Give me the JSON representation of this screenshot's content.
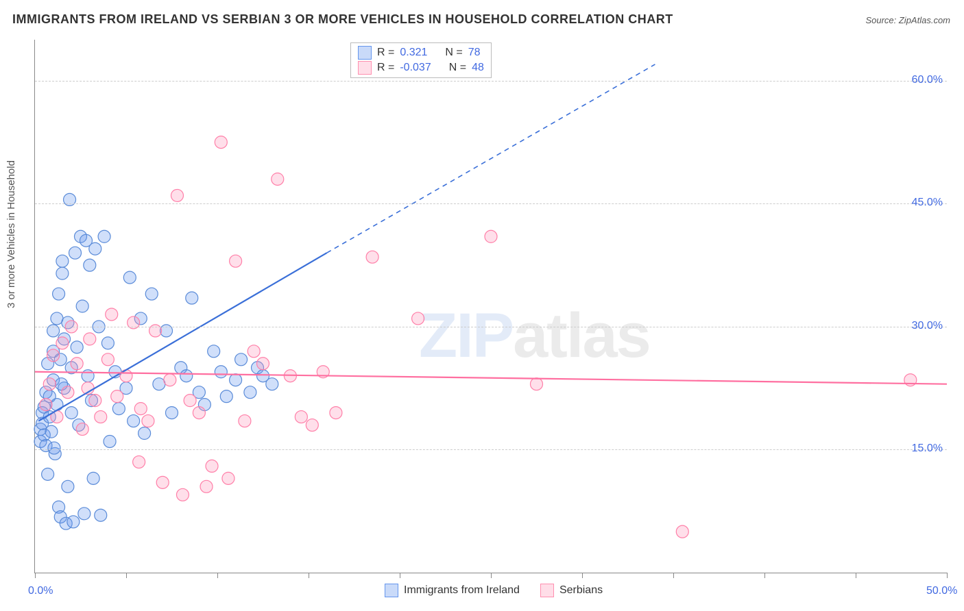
{
  "title": "IMMIGRANTS FROM IRELAND VS SERBIAN 3 OR MORE VEHICLES IN HOUSEHOLD CORRELATION CHART",
  "source": "Source: ZipAtlas.com",
  "ylabel": "3 or more Vehicles in Household",
  "watermark_a": "ZIP",
  "watermark_b": "atlas",
  "chart": {
    "type": "scatter",
    "xlim": [
      0,
      50
    ],
    "ylim": [
      0,
      65
    ],
    "xticks": [
      0,
      5,
      10,
      15,
      20,
      25,
      30,
      35,
      40,
      45,
      50
    ],
    "yticks": [
      15,
      30,
      45,
      60
    ],
    "ylabels": [
      "15.0%",
      "30.0%",
      "45.0%",
      "60.0%"
    ],
    "xlabels_shown": {
      "0": "0.0%",
      "50": "50.0%"
    },
    "grid_color": "#cccccc",
    "marker_radius": 9,
    "background": "#ffffff",
    "series": [
      {
        "name": "Immigrants from Ireland",
        "color": "#6495ed",
        "fill": "rgba(100,149,237,0.30)",
        "R": 0.321,
        "N": 78,
        "trend": {
          "solid": [
            [
              0.2,
              18.5
            ],
            [
              16,
              39
            ]
          ],
          "dash": [
            [
              16,
              39
            ],
            [
              34,
              62
            ]
          ]
        },
        "points": [
          [
            0.3,
            16.0
          ],
          [
            0.3,
            17.5
          ],
          [
            0.4,
            18.2
          ],
          [
            0.4,
            19.5
          ],
          [
            0.5,
            16.8
          ],
          [
            0.5,
            20.2
          ],
          [
            0.6,
            22.0
          ],
          [
            0.6,
            15.5
          ],
          [
            0.7,
            12.0
          ],
          [
            0.7,
            25.5
          ],
          [
            0.8,
            19.0
          ],
          [
            0.8,
            21.5
          ],
          [
            0.9,
            17.2
          ],
          [
            1.0,
            27.0
          ],
          [
            1.0,
            29.5
          ],
          [
            1.0,
            23.5
          ],
          [
            1.1,
            14.5
          ],
          [
            1.2,
            31.0
          ],
          [
            1.2,
            20.5
          ],
          [
            1.3,
            34.0
          ],
          [
            1.3,
            8.0
          ],
          [
            1.4,
            6.8
          ],
          [
            1.4,
            26.0
          ],
          [
            1.5,
            38.0
          ],
          [
            1.5,
            36.5
          ],
          [
            1.6,
            28.5
          ],
          [
            1.6,
            22.5
          ],
          [
            1.7,
            6.0
          ],
          [
            1.8,
            30.5
          ],
          [
            1.8,
            10.5
          ],
          [
            1.9,
            45.5
          ],
          [
            2.0,
            25.0
          ],
          [
            2.0,
            19.5
          ],
          [
            2.1,
            6.2
          ],
          [
            2.2,
            39.0
          ],
          [
            2.3,
            27.5
          ],
          [
            2.4,
            18.0
          ],
          [
            2.5,
            41.0
          ],
          [
            2.6,
            32.5
          ],
          [
            2.7,
            7.2
          ],
          [
            2.8,
            40.5
          ],
          [
            2.9,
            24.0
          ],
          [
            3.0,
            37.5
          ],
          [
            3.1,
            21.0
          ],
          [
            3.2,
            11.5
          ],
          [
            3.3,
            39.5
          ],
          [
            3.5,
            30.0
          ],
          [
            3.6,
            7.0
          ],
          [
            3.8,
            41.0
          ],
          [
            4.0,
            28.0
          ],
          [
            4.1,
            16.0
          ],
          [
            4.4,
            24.5
          ],
          [
            4.6,
            20.0
          ],
          [
            5.0,
            22.5
          ],
          [
            5.2,
            36.0
          ],
          [
            5.4,
            18.5
          ],
          [
            5.8,
            31.0
          ],
          [
            6.0,
            17.0
          ],
          [
            6.4,
            34.0
          ],
          [
            6.8,
            23.0
          ],
          [
            7.2,
            29.5
          ],
          [
            7.5,
            19.5
          ],
          [
            8.0,
            25.0
          ],
          [
            8.3,
            24.0
          ],
          [
            8.6,
            33.5
          ],
          [
            9.0,
            22.0
          ],
          [
            9.3,
            20.5
          ],
          [
            9.8,
            27.0
          ],
          [
            10.2,
            24.5
          ],
          [
            10.5,
            21.5
          ],
          [
            11.0,
            23.5
          ],
          [
            11.3,
            26.0
          ],
          [
            11.8,
            22.0
          ],
          [
            12.2,
            25.0
          ],
          [
            12.5,
            24.0
          ],
          [
            13.0,
            23.0
          ],
          [
            1.05,
            15.2
          ],
          [
            1.45,
            23.0
          ]
        ]
      },
      {
        "name": "Serbians",
        "color": "#ff8fb0",
        "fill": "rgba(255,150,185,0.30)",
        "R": -0.037,
        "N": 48,
        "trend": {
          "solid": [
            [
              0,
              24.5
            ],
            [
              50,
              23.0
            ]
          ]
        },
        "points": [
          [
            0.6,
            20.5
          ],
          [
            0.8,
            23.0
          ],
          [
            1.0,
            26.5
          ],
          [
            1.2,
            19.0
          ],
          [
            1.5,
            28.0
          ],
          [
            1.8,
            22.0
          ],
          [
            2.0,
            30.0
          ],
          [
            2.3,
            25.5
          ],
          [
            2.6,
            17.5
          ],
          [
            3.0,
            28.5
          ],
          [
            3.3,
            21.0
          ],
          [
            3.6,
            19.0
          ],
          [
            4.0,
            26.0
          ],
          [
            4.5,
            21.5
          ],
          [
            5.0,
            24.0
          ],
          [
            5.4,
            30.5
          ],
          [
            5.8,
            20.0
          ],
          [
            6.2,
            18.5
          ],
          [
            6.6,
            29.5
          ],
          [
            7.0,
            11.0
          ],
          [
            7.4,
            23.5
          ],
          [
            7.8,
            46.0
          ],
          [
            8.1,
            9.5
          ],
          [
            8.5,
            21.0
          ],
          [
            9.0,
            19.5
          ],
          [
            9.4,
            10.5
          ],
          [
            9.7,
            13.0
          ],
          [
            10.2,
            52.5
          ],
          [
            10.6,
            11.5
          ],
          [
            11.0,
            38.0
          ],
          [
            11.5,
            18.5
          ],
          [
            12.0,
            27.0
          ],
          [
            12.5,
            25.5
          ],
          [
            13.3,
            48.0
          ],
          [
            14.0,
            24.0
          ],
          [
            14.6,
            19.0
          ],
          [
            15.2,
            18.0
          ],
          [
            15.8,
            24.5
          ],
          [
            16.5,
            19.5
          ],
          [
            18.5,
            38.5
          ],
          [
            21.0,
            31.0
          ],
          [
            25.0,
            41.0
          ],
          [
            27.5,
            23.0
          ],
          [
            35.5,
            5.0
          ],
          [
            48.0,
            23.5
          ],
          [
            5.7,
            13.5
          ],
          [
            4.2,
            31.5
          ],
          [
            2.9,
            22.5
          ]
        ]
      }
    ]
  },
  "stat_labels": {
    "R": "R =",
    "N": "N ="
  },
  "bottom_legend": [
    {
      "swatch": "blue",
      "label": "Immigrants from Ireland"
    },
    {
      "swatch": "pink",
      "label": "Serbians"
    }
  ]
}
